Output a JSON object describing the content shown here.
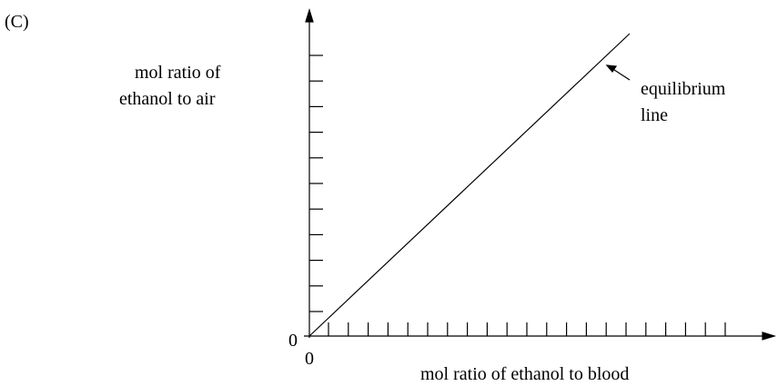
{
  "panel_label": "(C)",
  "y_axis": {
    "label_lines": [
      "mol ratio of",
      "ethanol to air"
    ],
    "origin": 0
  },
  "x_axis": {
    "label": "mol ratio of ethanol to blood",
    "origin": 0
  },
  "annotation": {
    "lines": [
      "equilibrium",
      "line"
    ]
  }
}
